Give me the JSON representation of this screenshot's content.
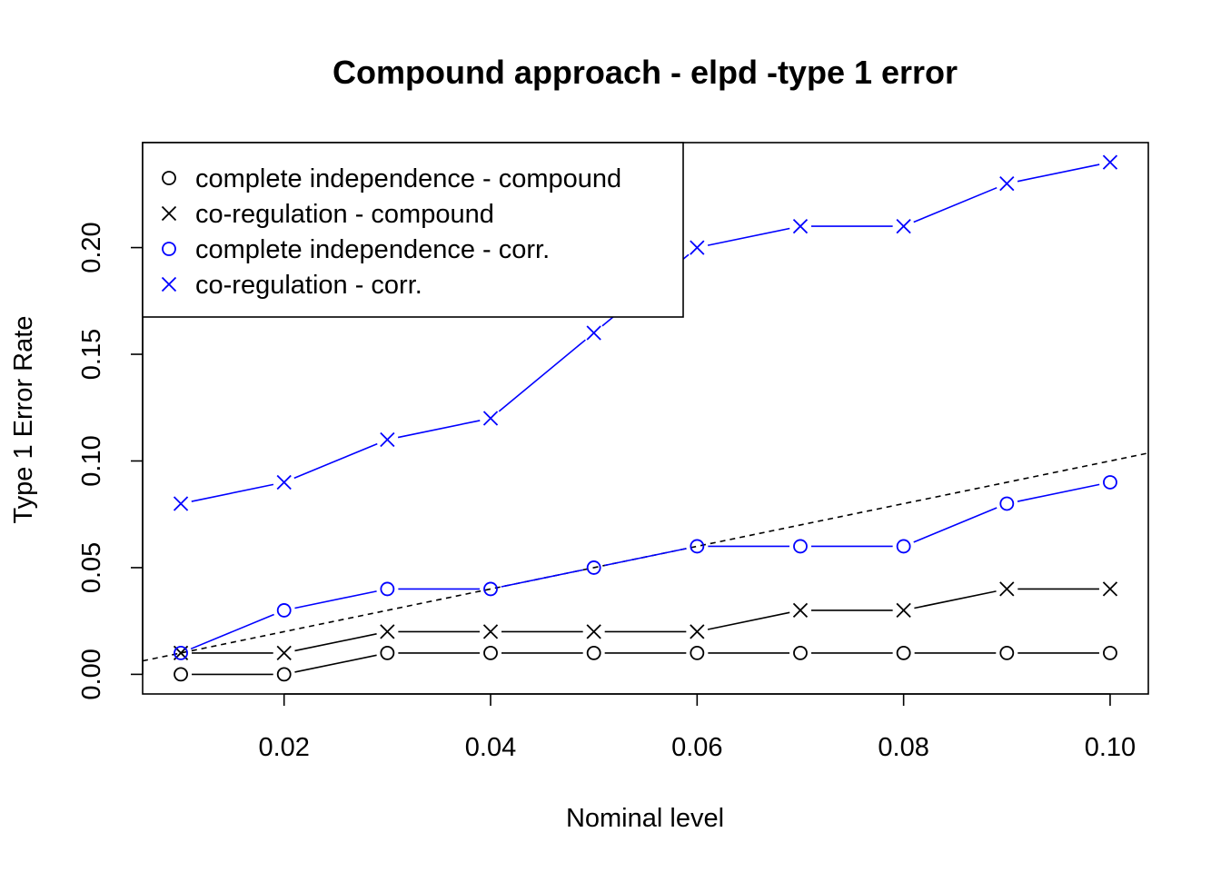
{
  "chart_data": {
    "type": "line",
    "title": "Compound approach - elpd -type 1 error",
    "xlabel": "Nominal level",
    "ylabel": "Type 1 Error Rate",
    "xlim": [
      0.0063,
      0.1037
    ],
    "ylim": [
      -0.0092,
      0.2492
    ],
    "x_ticks": [
      "0.02",
      "0.04",
      "0.06",
      "0.08",
      "0.10"
    ],
    "x_tick_values": [
      0.02,
      0.04,
      0.06,
      0.08,
      0.1
    ],
    "y_ticks": [
      "0.00",
      "0.05",
      "0.10",
      "0.15",
      "0.20"
    ],
    "y_tick_values": [
      0.0,
      0.05,
      0.1,
      0.15,
      0.2
    ],
    "x": [
      0.01,
      0.02,
      0.03,
      0.04,
      0.05,
      0.06,
      0.07,
      0.08,
      0.09,
      0.1
    ],
    "series": [
      {
        "name": "complete independence - compound",
        "color": "#000000",
        "marker": "circle",
        "values": [
          0.0,
          0.0,
          0.01,
          0.01,
          0.01,
          0.01,
          0.01,
          0.01,
          0.01,
          0.01
        ]
      },
      {
        "name": "co-regulation - compound",
        "color": "#000000",
        "marker": "cross",
        "values": [
          0.01,
          0.01,
          0.02,
          0.02,
          0.02,
          0.02,
          0.03,
          0.03,
          0.04,
          0.04
        ]
      },
      {
        "name": "complete independence - corr.",
        "color": "#0000ff",
        "marker": "circle",
        "values": [
          0.01,
          0.03,
          0.04,
          0.04,
          0.05,
          0.06,
          0.06,
          0.06,
          0.08,
          0.09
        ]
      },
      {
        "name": "co-regulation - corr.",
        "color": "#0000ff",
        "marker": "cross",
        "values": [
          0.08,
          0.09,
          0.11,
          0.12,
          0.16,
          0.2,
          0.21,
          0.21,
          0.23,
          0.24
        ]
      }
    ],
    "reference_line": {
      "style": "dashed",
      "intercept": 0,
      "slope": 1
    },
    "legend_position": "top-left",
    "grid": false
  }
}
